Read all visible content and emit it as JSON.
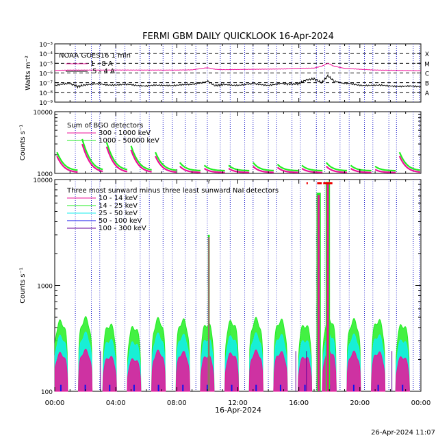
{
  "title": "FERMI GBM DAILY QUICKLOOK   16-Apr-2024",
  "footer_timestamp": "26-Apr-2024 11:07",
  "colors": {
    "magenta": "#ee1199",
    "black": "#000000",
    "green": "#22ee22",
    "cyan": "#11eeee",
    "blue": "#1111ee",
    "purple": "#660099",
    "red": "#ee0000",
    "vline": "#2222cc"
  },
  "chart_data": [
    {
      "id": "goes",
      "type": "line",
      "ylabel": "Watts m⁻²",
      "yscale": "log",
      "ylim": [
        1e-09,
        0.001
      ],
      "ytick_labels": [
        "10⁻³",
        "10⁻⁴",
        "10⁻⁵",
        "10⁻⁶",
        "10⁻⁷",
        "10⁻⁸",
        "10⁻⁹"
      ],
      "class_labels": [
        "X",
        "M",
        "C",
        "B",
        "A"
      ],
      "legend_title": "NOAA GOES16 1 min",
      "series": [
        {
          "name": "1 - 8 A",
          "color": "magenta",
          "x": [
            0,
            1,
            2,
            3,
            4,
            5,
            6,
            7,
            8,
            9,
            10,
            10.5,
            11,
            12,
            13,
            14,
            15,
            16,
            17,
            17.5,
            17.9,
            18.3,
            19,
            20,
            21,
            22,
            23,
            24
          ],
          "y": [
            1.8e-06,
            2e-06,
            2e-06,
            2e-06,
            2e-06,
            2e-06,
            2e-06,
            2e-06,
            2e-06,
            2.1e-06,
            3.5e-06,
            2.4e-06,
            2.2e-06,
            2.3e-06,
            2.4e-06,
            2.5e-06,
            2.6e-06,
            3e-06,
            3.2e-06,
            5e-06,
            1e-05,
            5e-06,
            3e-06,
            2.4e-06,
            2e-06,
            1.9e-06,
            1.8e-06,
            1.7e-06
          ]
        },
        {
          "name": ".5 - 4 A",
          "color": "black",
          "x": [
            0,
            1,
            1.5,
            2,
            3,
            4,
            5,
            6,
            7,
            8,
            9,
            10,
            10.5,
            11,
            12,
            13,
            14,
            15,
            15.5,
            16,
            16.5,
            17,
            17.5,
            17.9,
            18.3,
            19,
            20,
            21,
            22,
            23,
            24
          ],
          "y": [
            5e-08,
            8e-08,
            4e-08,
            6e-08,
            7e-08,
            6e-08,
            6e-08,
            5e-08,
            5e-08,
            6e-08,
            6e-08,
            1.5e-07,
            5e-08,
            6e-08,
            6e-08,
            7e-08,
            6e-08,
            8e-08,
            7e-08,
            8e-08,
            2e-07,
            2.5e-07,
            1e-07,
            5e-07,
            1.5e-07,
            8e-08,
            6e-08,
            5e-08,
            5e-08,
            4e-08,
            4e-08
          ]
        }
      ]
    },
    {
      "id": "bgo",
      "type": "line",
      "ylabel": "Counts s⁻¹",
      "yscale": "log",
      "ylim": [
        1000,
        10000
      ],
      "ytick_labels": [
        "10000",
        "1000"
      ],
      "legend_title": "Sum of BGO detectors",
      "series": [
        {
          "name": "300 - 1000 keV",
          "color": "magenta",
          "style": "decay"
        },
        {
          "name": "1000 - 50000 keV",
          "color": "green",
          "style": "decay"
        }
      ],
      "orbits_start": [
        0.15,
        1.8,
        3.4,
        5.0,
        6.6,
        8.2,
        9.8,
        11.4,
        13.0,
        14.6,
        16.2,
        17.8,
        19.4,
        21.0,
        22.6
      ],
      "peaks_high": [
        2200,
        3600,
        3200,
        2800,
        2200,
        1500,
        1350,
        1350,
        1500,
        1400,
        1350,
        1500,
        1350,
        1300,
        2200
      ],
      "peaks_low": [
        1900,
        3000,
        2700,
        2400,
        1900,
        1300,
        1200,
        1200,
        1300,
        1250,
        1200,
        1300,
        1200,
        1150,
        1900
      ]
    },
    {
      "id": "nai",
      "type": "line",
      "ylabel": "Counts s⁻¹",
      "yscale": "log",
      "ylim": [
        100,
        10000
      ],
      "ytick_labels": [
        "10000",
        "1000",
        "100"
      ],
      "legend_title": "Three most sunward minus three least sunward NaI detectors",
      "series": [
        {
          "name": "10 - 14 keV",
          "color": "magenta"
        },
        {
          "name": "14 - 25 keV",
          "color": "green"
        },
        {
          "name": "25 - 50 keV",
          "color": "cyan"
        },
        {
          "name": "50 - 100 keV",
          "color": "blue"
        },
        {
          "name": "100 - 300 keV",
          "color": "purple"
        }
      ],
      "humps_x": [
        0.4,
        2.0,
        3.6,
        5.2,
        6.8,
        8.4,
        10.0,
        11.6,
        13.2,
        14.8,
        16.4,
        18.0,
        19.6,
        21.2,
        22.8
      ],
      "humps_green": [
        450,
        480,
        420,
        400,
        470,
        460,
        430,
        450,
        470,
        460,
        420,
        480,
        460,
        460,
        420
      ],
      "flares": [
        {
          "x": 10.1,
          "peak": 3000
        },
        {
          "x": 17.3,
          "peak": 7500
        },
        {
          "x": 17.9,
          "peak": 9500
        }
      ]
    }
  ],
  "x_axis": {
    "range_hours": [
      0,
      24
    ],
    "tick_labels": [
      "00:00",
      "04:00",
      "08:00",
      "12:00",
      "16:00",
      "20:00",
      "00:00"
    ],
    "date_label": "16-Apr-2024"
  },
  "saa_lines_hours": [
    1.35,
    2.4,
    2.95,
    4.0,
    4.6,
    5.6,
    6.2,
    7.1,
    7.7,
    8.55,
    9.25,
    10.0,
    10.85,
    11.5,
    12.45,
    13.0,
    14.0,
    14.55,
    15.55,
    16.1,
    17.15,
    17.7,
    18.7,
    19.3,
    20.3,
    20.85,
    21.9,
    22.4,
    23.5,
    23.9
  ]
}
